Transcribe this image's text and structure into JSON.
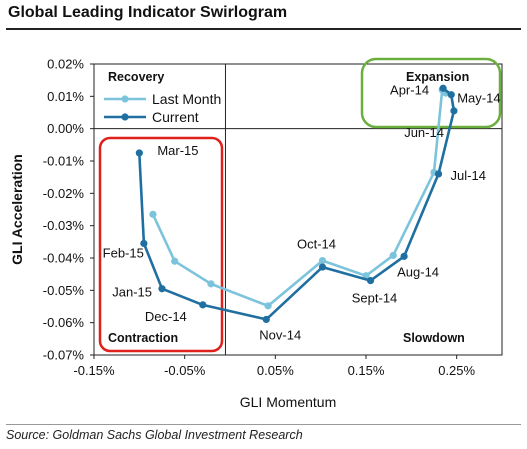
{
  "title": "Global Leading Indicator Swirlogram",
  "source": "Source: Goldman Sachs Global Investment Research",
  "chart_data": {
    "type": "line",
    "xlabel": "GLI Momentum",
    "ylabel": "GLI Acceleration",
    "xlim": [
      -0.15,
      0.3
    ],
    "ylim": [
      -0.07,
      0.02
    ],
    "x_ticks": [
      "-0.15%",
      "-0.05%",
      "0.05%",
      "0.15%",
      "0.25%"
    ],
    "x_tick_values": [
      -0.15,
      -0.05,
      0.05,
      0.15,
      0.25
    ],
    "y_ticks": [
      "0.02%",
      "0.01%",
      "0.00%",
      "-0.01%",
      "-0.02%",
      "-0.03%",
      "-0.04%",
      "-0.05%",
      "-0.06%",
      "-0.07%"
    ],
    "y_tick_values": [
      0.02,
      0.01,
      0.0,
      -0.01,
      -0.02,
      -0.03,
      -0.04,
      -0.05,
      -0.06,
      -0.07
    ],
    "legend": [
      "Last Month",
      "Current"
    ],
    "series": [
      {
        "name": "Last Month",
        "color": "#7cc4dc",
        "points": [
          {
            "x": -0.085,
            "y": -0.0265
          },
          {
            "x": -0.061,
            "y": -0.041
          },
          {
            "x": -0.021,
            "y": -0.048
          },
          {
            "x": 0.042,
            "y": -0.0548
          },
          {
            "x": 0.102,
            "y": -0.0408
          },
          {
            "x": 0.15,
            "y": -0.0455
          },
          {
            "x": 0.18,
            "y": -0.0392
          },
          {
            "x": 0.225,
            "y": -0.0135
          },
          {
            "x": 0.234,
            "y": 0.012
          },
          {
            "x": 0.238,
            "y": 0.011
          }
        ]
      },
      {
        "name": "Current",
        "color": "#1f6fa0",
        "points": [
          {
            "x": -0.1,
            "y": -0.0075
          },
          {
            "x": -0.095,
            "y": -0.0355
          },
          {
            "x": -0.075,
            "y": -0.0495
          },
          {
            "x": -0.03,
            "y": -0.0545
          },
          {
            "x": 0.04,
            "y": -0.059
          },
          {
            "x": 0.102,
            "y": -0.0428
          },
          {
            "x": 0.155,
            "y": -0.047
          },
          {
            "x": 0.192,
            "y": -0.0395
          },
          {
            "x": 0.23,
            "y": -0.014
          },
          {
            "x": 0.247,
            "y": 0.0055
          },
          {
            "x": 0.244,
            "y": 0.0105
          },
          {
            "x": 0.235,
            "y": 0.0125
          }
        ]
      }
    ],
    "point_labels": [
      {
        "text": "Mar-15",
        "x": -0.1,
        "y": -0.0075,
        "anchor": "right"
      },
      {
        "text": "Feb-15",
        "x": -0.095,
        "y": -0.0355,
        "anchor": "left-below"
      },
      {
        "text": "Jan-15",
        "x": -0.075,
        "y": -0.0495,
        "anchor": "left"
      },
      {
        "text": "Dec-14",
        "x": -0.03,
        "y": -0.0545,
        "anchor": "left-below"
      },
      {
        "text": "Nov-14",
        "x": 0.04,
        "y": -0.059,
        "anchor": "below-right"
      },
      {
        "text": "Oct-14",
        "x": 0.102,
        "y": -0.0408,
        "anchor": "above"
      },
      {
        "text": "Sept-14",
        "x": 0.155,
        "y": -0.047,
        "anchor": "below"
      },
      {
        "text": "Aug-14",
        "x": 0.192,
        "y": -0.0395,
        "anchor": "below-right"
      },
      {
        "text": "Jul-14",
        "x": 0.23,
        "y": -0.014,
        "anchor": "right"
      },
      {
        "text": "Jun-14",
        "x": 0.247,
        "y": 0.0055,
        "anchor": "left-below"
      },
      {
        "text": "May-14",
        "x": 0.244,
        "y": 0.0105,
        "anchor": "right"
      },
      {
        "text": "Apr-14",
        "x": 0.235,
        "y": 0.0125,
        "anchor": "left"
      }
    ],
    "quadrants": {
      "top_left": "Recovery",
      "top_right": "Expansion",
      "bottom_left": "Contraction",
      "bottom_right": "Slowdown"
    },
    "highlights": [
      {
        "label": "Contraction",
        "color": "#e0201b"
      },
      {
        "label": "Expansion",
        "color": "#6aaf3d"
      }
    ],
    "divider": {
      "x": -0.005,
      "y": 0.0
    }
  }
}
